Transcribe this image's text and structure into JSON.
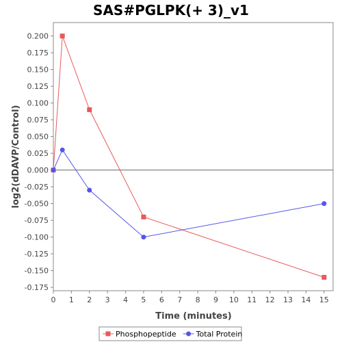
{
  "chart_data": {
    "type": "line",
    "title": "SAS#PGLPK(+ 3)_v1",
    "xlabel": "Time (minutes)",
    "ylabel": "log2(dDAVP/Control)",
    "xlim": [
      0,
      15.5
    ],
    "ylim": [
      -0.18,
      0.22
    ],
    "x_ticks": [
      0,
      1,
      2,
      3,
      4,
      5,
      6,
      7,
      8,
      9,
      10,
      11,
      12,
      13,
      14,
      15
    ],
    "y_ticks": [
      0.2,
      0.175,
      0.15,
      0.125,
      0.1,
      0.075,
      0.05,
      0.025,
      0.0,
      -0.025,
      -0.05,
      -0.075,
      -0.1,
      -0.125,
      -0.15,
      -0.175
    ],
    "y_tick_labels": [
      "0.200",
      "0.175",
      "0.150",
      "0.125",
      "0.100",
      "0.075",
      "0.050",
      "0.025",
      "0.000",
      "-0.025",
      "-0.050",
      "-0.075",
      "-0.100",
      "-0.125",
      "-0.150",
      "-0.175"
    ],
    "zero_line": true,
    "grid": false,
    "legend_position": "bottom",
    "series": [
      {
        "name": "Phosphopeptide",
        "color": "#e8595a",
        "marker": "square",
        "x": [
          0,
          0.5,
          2,
          5,
          15
        ],
        "y": [
          0.0,
          0.2,
          0.09,
          -0.07,
          -0.16
        ]
      },
      {
        "name": "Total Protein",
        "color": "#5555e8",
        "marker": "circle",
        "x": [
          0,
          0.5,
          2,
          5,
          15
        ],
        "y": [
          0.0,
          0.03,
          -0.03,
          -0.1,
          -0.05
        ]
      }
    ]
  }
}
